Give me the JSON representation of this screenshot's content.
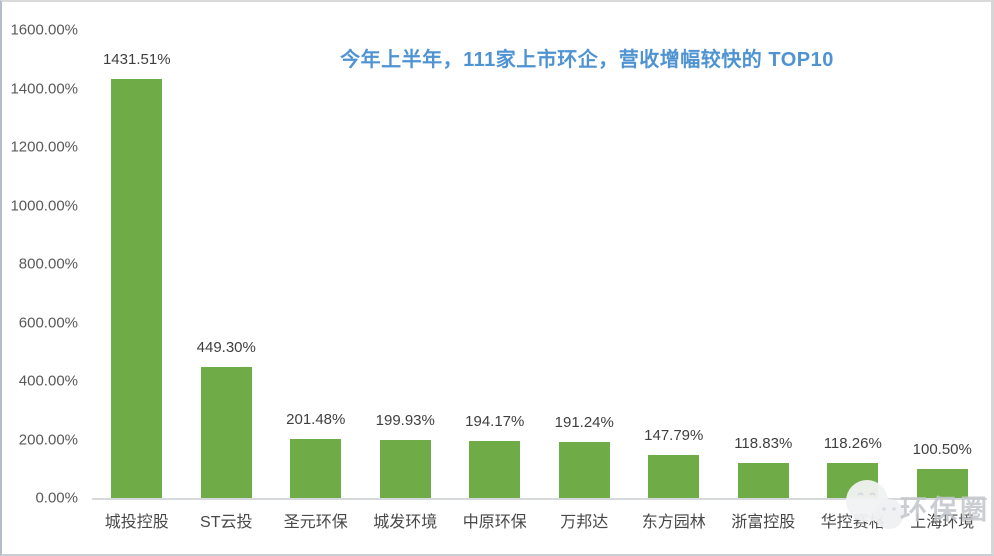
{
  "chart_data": {
    "type": "bar",
    "title": "今年上半年，111家上市环企，营收增幅较快的 TOP10",
    "title_color": "#4f93d2",
    "bar_color": "#6fac47",
    "categories": [
      "城投控股",
      "ST云投",
      "圣元环保",
      "城发环境",
      "中原环保",
      "万邦达",
      "东方园林",
      "浙富控股",
      "华控赛格",
      "上海环境"
    ],
    "values": [
      1431.51,
      449.3,
      201.48,
      199.93,
      194.17,
      191.24,
      147.79,
      118.83,
      118.26,
      100.5
    ],
    "value_labels": [
      "1431.51%",
      "449.30%",
      "201.48%",
      "199.93%",
      "194.17%",
      "191.24%",
      "147.79%",
      "118.83%",
      "118.26%",
      "100.50%"
    ],
    "xlabel": "",
    "ylabel": "",
    "ylim": [
      0,
      1600
    ],
    "y_tick_step": 200,
    "y_tick_labels": [
      "0.00%",
      "200.00%",
      "400.00%",
      "600.00%",
      "800.00%",
      "1000.00%",
      "1200.00%",
      "1400.00%",
      "1600.00%"
    ],
    "grid": false,
    "legend": false
  },
  "watermark": {
    "text": "环保圈",
    "icon": "wechat-logo-icon"
  }
}
